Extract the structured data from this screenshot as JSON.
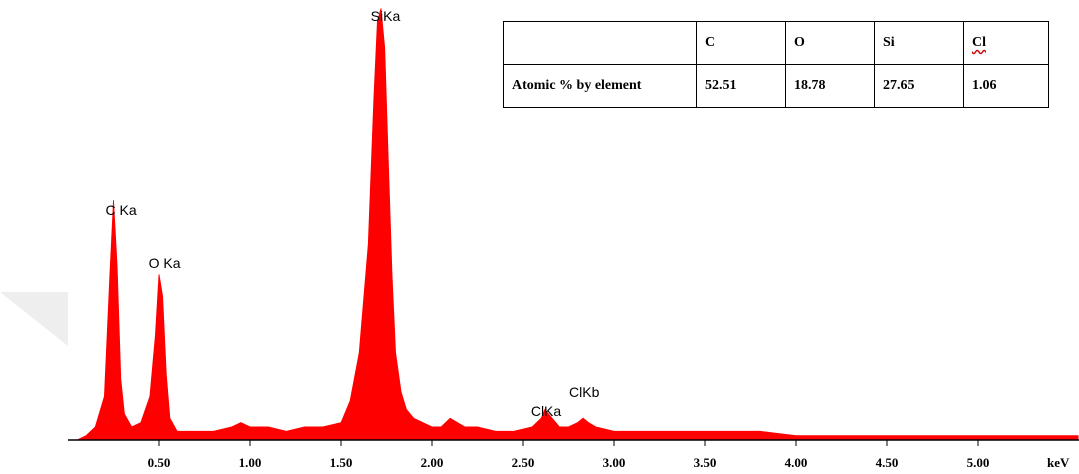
{
  "chart_data": {
    "type": "area",
    "title": "",
    "xlabel": "keV",
    "ylabel": "",
    "xlim": [
      0.0,
      5.55
    ],
    "ylim": [
      0,
      100
    ],
    "grid": false,
    "x_ticks": [
      0.5,
      1.0,
      1.5,
      2.0,
      2.5,
      3.0,
      3.5,
      4.0,
      4.5,
      5.0
    ],
    "x_tick_labels": [
      "0.50",
      "1.00",
      "1.50",
      "2.00",
      "2.50",
      "3.00",
      "3.50",
      "4.00",
      "4.50",
      "5.00"
    ],
    "series": [
      {
        "color": "#ff0000",
        "x": [
          0.05,
          0.1,
          0.15,
          0.2,
          0.23,
          0.25,
          0.27,
          0.29,
          0.31,
          0.35,
          0.4,
          0.45,
          0.48,
          0.5,
          0.52,
          0.54,
          0.56,
          0.6,
          0.7,
          0.8,
          0.9,
          0.95,
          1.0,
          1.1,
          1.2,
          1.3,
          1.4,
          1.5,
          1.55,
          1.6,
          1.65,
          1.68,
          1.7,
          1.72,
          1.74,
          1.76,
          1.78,
          1.8,
          1.83,
          1.86,
          1.9,
          1.95,
          2.0,
          2.05,
          2.1,
          2.14,
          2.18,
          2.25,
          2.35,
          2.45,
          2.55,
          2.6,
          2.62,
          2.66,
          2.7,
          2.75,
          2.8,
          2.83,
          2.86,
          2.9,
          3.0,
          3.2,
          3.5,
          3.8,
          4.0,
          4.5,
          5.0,
          5.55
        ],
        "y": [
          0,
          1,
          3,
          10,
          38,
          55,
          40,
          14,
          6,
          3,
          4,
          10,
          24,
          38,
          33,
          15,
          5,
          2,
          2,
          2,
          3,
          4,
          3,
          3,
          2,
          3,
          3,
          4,
          9,
          20,
          45,
          78,
          96,
          99,
          90,
          64,
          38,
          20,
          11,
          7,
          5,
          4,
          3,
          3,
          5,
          4,
          3,
          3,
          2,
          2,
          3,
          5,
          7,
          5,
          3,
          3,
          4,
          5,
          4,
          3,
          2,
          2,
          2,
          2,
          1,
          1,
          1,
          1
        ]
      }
    ],
    "annotations": [
      {
        "text": "C Ka",
        "x": 0.25
      },
      {
        "text": "O Ka",
        "x": 0.52
      },
      {
        "text": "SiKa",
        "x": 1.74
      },
      {
        "text": "ClKa",
        "x": 2.62
      },
      {
        "text": "ClKb",
        "x": 2.83
      }
    ]
  },
  "table": {
    "header": [
      "",
      "C",
      "O",
      "Si",
      "Cl"
    ],
    "row_label": "Atomic % by element",
    "row_values": [
      "52.51",
      "18.78",
      "27.65",
      "1.06"
    ]
  },
  "colors": {
    "spectrum": "#ff0000",
    "axis": "#000000",
    "watermark": "#eeeeee"
  }
}
